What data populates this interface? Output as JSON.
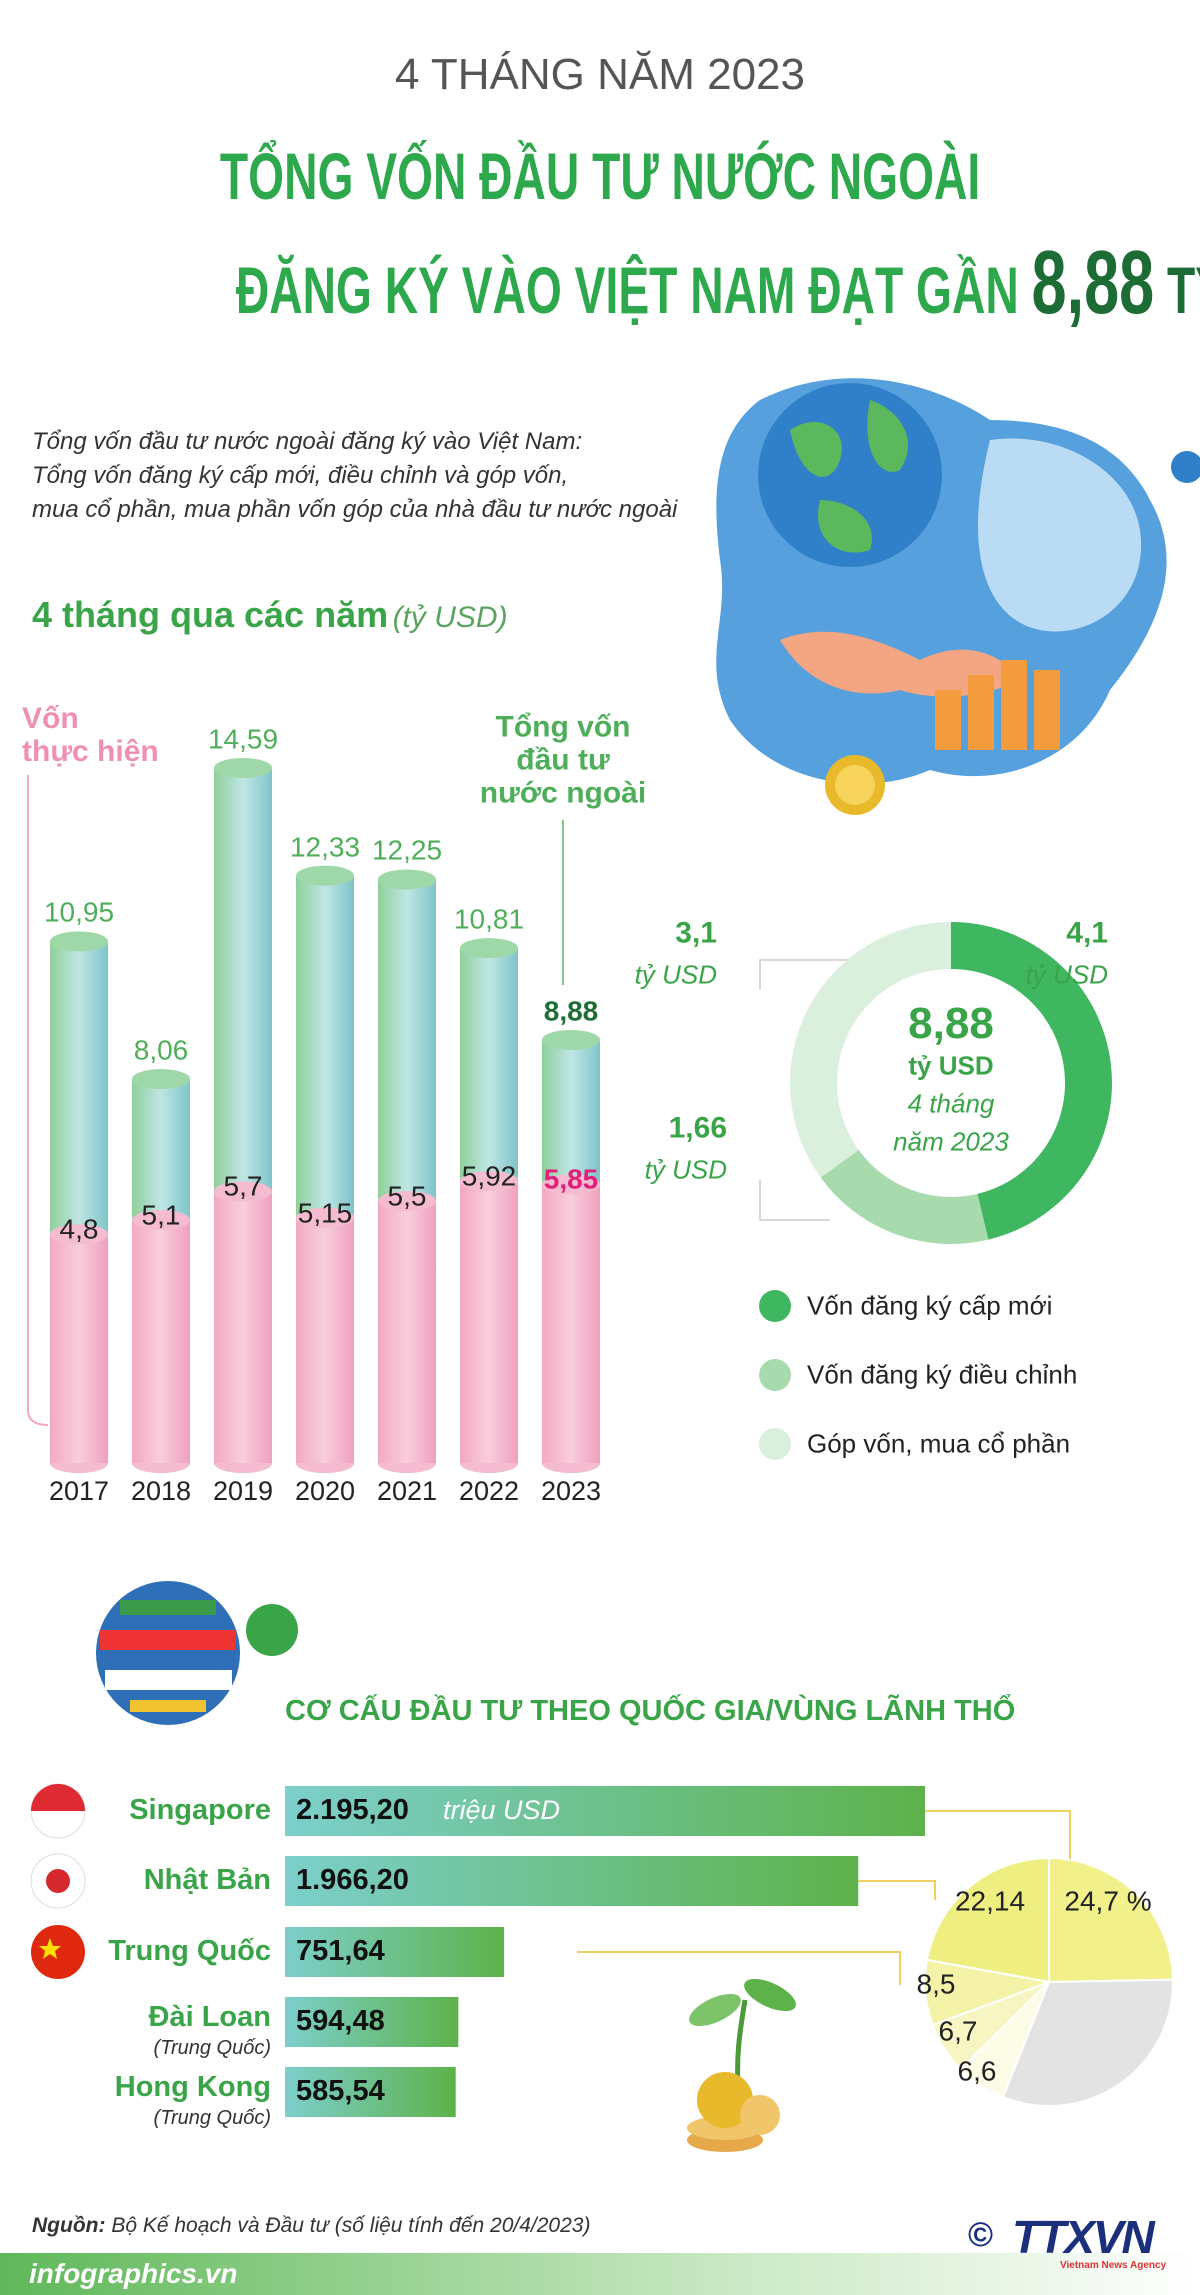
{
  "header": {
    "period": "4 THÁNG NĂM 2023",
    "title_line1": "TỔNG VỐN ĐẦU TƯ NƯỚC NGOÀI",
    "title_line2": "ĐĂNG KÝ VÀO VIỆT NAM ĐẠT GẦN",
    "title_figure": "8,88",
    "title_unit": "TỶ USD"
  },
  "intro": [
    "Tổng vốn đầu tư nước ngoài đăng ký vào Việt Nam:",
    "Tổng vốn đăng ký cấp mới, điều chỉnh và góp vốn,",
    "mua cổ phần, mua phần vốn góp của nhà đầu tư nước ngoài"
  ],
  "chart_data": [
    {
      "type": "bar",
      "title": "4 tháng qua các năm",
      "unit": "(tỷ USD)",
      "overlap": true,
      "categories": [
        "2017",
        "2018",
        "2019",
        "2020",
        "2021",
        "2022",
        "2023"
      ],
      "series": [
        {
          "name": "Tổng vốn\nđầu tư\nnước ngoài",
          "color": "#9fd8a8",
          "label_color": "#4fae5a",
          "highlight_color": "#1e6e35",
          "values": [
            10.95,
            8.06,
            14.59,
            12.33,
            12.25,
            10.81,
            8.88
          ],
          "value_labels": [
            "10,95",
            "8,06",
            "14,59",
            "12,33",
            "12,25",
            "10,81",
            "8,88"
          ]
        },
        {
          "name": "Vốn\nthực hiện",
          "color": "#f5bcd1",
          "label_color": "#222222",
          "highlight_color": "#e0207a",
          "values": [
            4.8,
            5.1,
            5.7,
            5.15,
            5.5,
            5.92,
            5.85
          ],
          "value_labels": [
            "4,8",
            "5,1",
            "5,7",
            "5,15",
            "5,5",
            "5,92",
            "5,85"
          ]
        }
      ]
    },
    {
      "type": "donut",
      "categories": [
        "Vốn đăng ký cấp mới",
        "Vốn đăng ký điều chỉnh",
        "Góp vốn, mua cổ phần"
      ],
      "values": [
        4.1,
        1.66,
        3.1
      ],
      "value_labels": [
        "4,1",
        "1,66",
        "3,1"
      ],
      "value_unit": "tỷ USD",
      "colors": [
        "#3fb660",
        "#a7dbad",
        "#daf0dc"
      ],
      "center_value": "8,88",
      "center_unit": "tỷ USD",
      "center_note": [
        "4 tháng",
        "năm 2023"
      ]
    },
    {
      "type": "hbar",
      "title": "CƠ CẤU ĐẦU TƯ THEO QUỐC GIA/VÙNG LÃNH THỔ",
      "categories": [
        "Singapore",
        "Nhật Bản",
        "Trung Quốc",
        "Đài Loan",
        "Hong Kong"
      ],
      "category_notes": [
        null,
        null,
        null,
        "(Trung Quốc)",
        "(Trung Quốc)"
      ],
      "values": [
        2195.2,
        1966.2,
        751.64,
        594.48,
        585.54
      ],
      "value_labels": [
        "2.195,20",
        "1.966,20",
        "751,64",
        "594,48",
        "585,54"
      ],
      "value_unit": "triệu USD",
      "colors": [
        "#7ccfcb",
        "#5db24a"
      ]
    },
    {
      "type": "pie",
      "values": [
        24.7,
        31.36,
        6.6,
        6.7,
        8.5,
        22.14
      ],
      "value_labels": [
        "24,7 %",
        null,
        "6,6",
        "6,7",
        "8,5",
        "22,14"
      ],
      "colors": [
        "#f1f08a",
        "#e3e3e3",
        "#fbfbe6",
        "#f7f6c2",
        "#f3f2a6",
        "#efee80"
      ]
    }
  ],
  "footer": {
    "source_label": "Nguồn:",
    "source_text": "Bộ Kế hoạch và Đầu tư (số liệu tính đến 20/4/2023)",
    "site": "infographics.vn",
    "copyright": "©",
    "logo": "TTXVN",
    "logo_sub": "Vietnam News Agency"
  }
}
